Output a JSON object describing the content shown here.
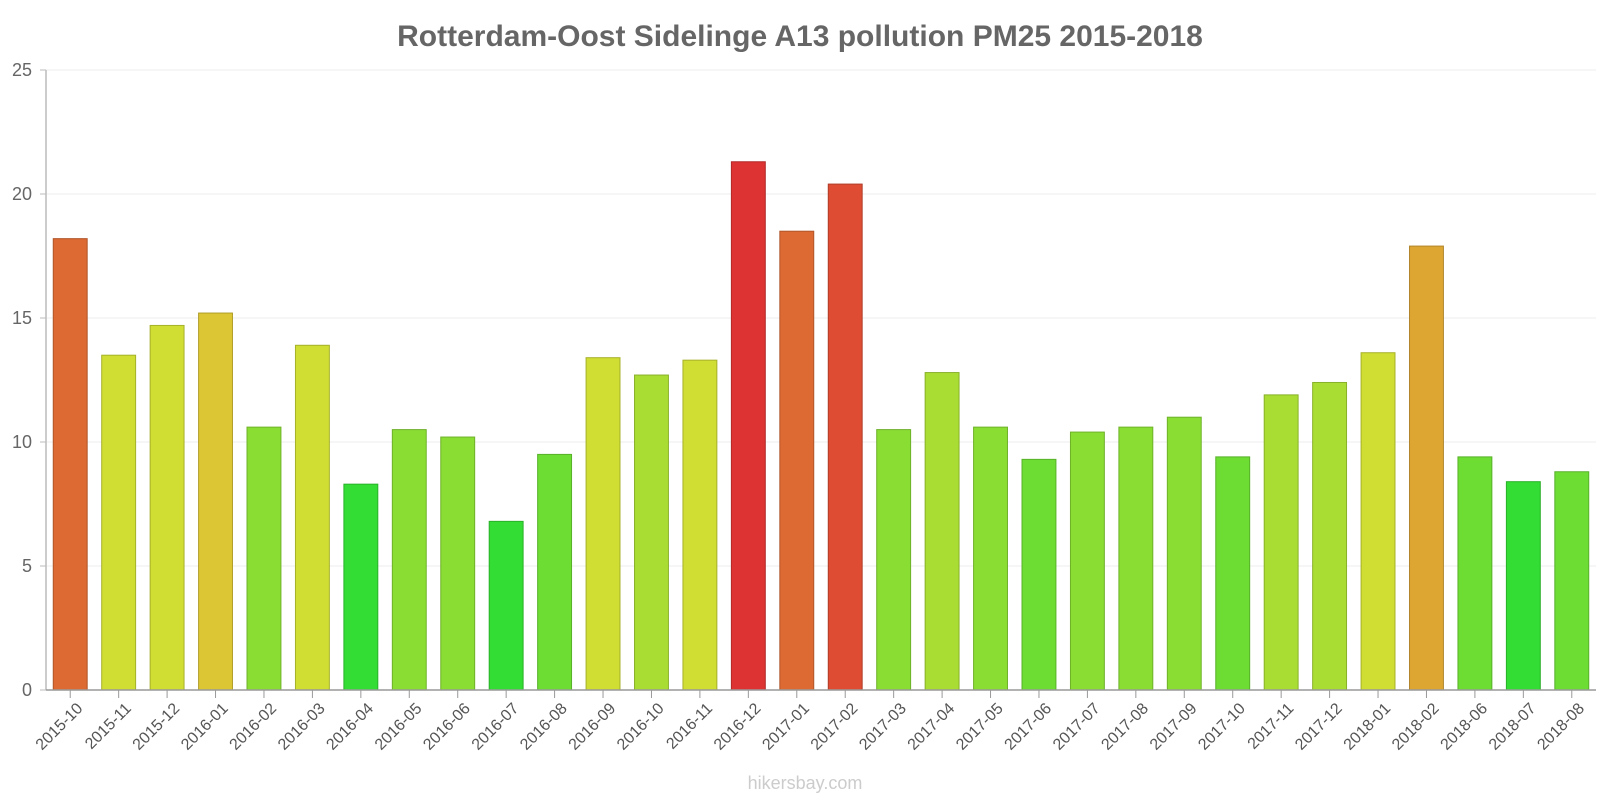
{
  "chart_data": {
    "type": "bar",
    "title": "Rotterdam-Oost Sidelinge A13 pollution PM25 2015-2018",
    "xlabel": "",
    "ylabel": "",
    "ylim": [
      0,
      25
    ],
    "yticks": [
      0,
      5,
      10,
      15,
      20,
      25
    ],
    "grid": true,
    "categories": [
      "2015-10",
      "2015-11",
      "2015-12",
      "2016-01",
      "2016-02",
      "2016-03",
      "2016-04",
      "2016-05",
      "2016-06",
      "2016-07",
      "2016-08",
      "2016-09",
      "2016-10",
      "2016-11",
      "2016-12",
      "2017-01",
      "2017-02",
      "2017-03",
      "2017-04",
      "2017-05",
      "2017-06",
      "2017-07",
      "2017-08",
      "2017-09",
      "2017-10",
      "2017-11",
      "2017-12",
      "2018-01",
      "2018-02",
      "2018-06",
      "2018-07",
      "2018-08"
    ],
    "values": [
      18.2,
      13.5,
      14.7,
      15.2,
      10.6,
      13.9,
      8.3,
      10.5,
      10.2,
      6.8,
      9.5,
      13.4,
      12.7,
      13.3,
      21.3,
      18.5,
      20.4,
      10.5,
      12.8,
      10.6,
      9.3,
      10.4,
      10.6,
      11.0,
      9.4,
      11.9,
      12.4,
      13.6,
      17.9,
      9.4,
      8.4,
      8.8
    ],
    "colors": [
      "#dd6a33",
      "#d0dd33",
      "#d0dd33",
      "#ddc633",
      "#8add33",
      "#d0dd33",
      "#33dd33",
      "#8add33",
      "#8add33",
      "#33dd33",
      "#6ddd33",
      "#d0dd33",
      "#aadd33",
      "#d0dd33",
      "#dd3333",
      "#dd6a33",
      "#dd4c33",
      "#8add33",
      "#aadd33",
      "#8add33",
      "#6ddd33",
      "#8add33",
      "#8add33",
      "#8add33",
      "#6ddd33",
      "#aadd33",
      "#aadd33",
      "#d0dd33",
      "#dda633",
      "#6ddd33",
      "#33dd33",
      "#6ddd33"
    ]
  },
  "watermark": "hikersbay.com"
}
